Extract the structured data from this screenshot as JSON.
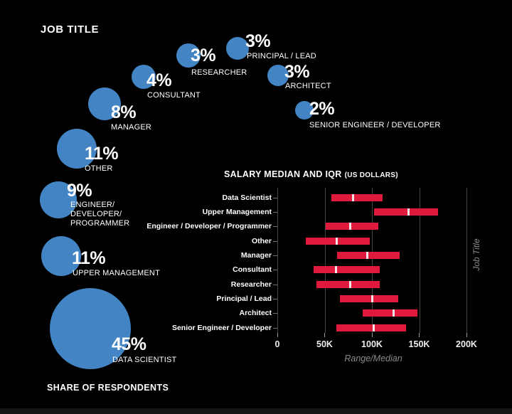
{
  "colors": {
    "background": "#000000",
    "bubble_blue": "#4284c4",
    "bar_red": "#e01a3c",
    "median_tick": "#f6e3e8",
    "grid_gray": "#434343",
    "muted_text": "#8c8c8c",
    "text": "#ffffff"
  },
  "chart_data": [
    {
      "type": "bubble",
      "title": "JOB TITLE",
      "footer": "SHARE OF RESPONDENTS",
      "value_unit": "percent",
      "points": [
        {
          "label": "PRINCIPAL / LEAD",
          "pct_text": "3%",
          "value_pct": 3,
          "label_lines": [
            "PRINCIPAL / LEAD"
          ]
        },
        {
          "label": "RESEARCHER",
          "pct_text": "3%",
          "value_pct": 3,
          "label_lines": [
            "RESEARCHER"
          ]
        },
        {
          "label": "ARCHITECT",
          "pct_text": "3%",
          "value_pct": 3,
          "label_lines": [
            "ARCHITECT"
          ]
        },
        {
          "label": "CONSULTANT",
          "pct_text": "4%",
          "value_pct": 4,
          "label_lines": [
            "CONSULTANT"
          ]
        },
        {
          "label": "SENIOR ENGINEER / DEVELOPER",
          "pct_text": "2%",
          "value_pct": 2,
          "label_lines": [
            "SENIOR ENGINEER / DEVELOPER"
          ]
        },
        {
          "label": "MANAGER",
          "pct_text": "8%",
          "value_pct": 8,
          "label_lines": [
            "MANAGER"
          ]
        },
        {
          "label": "OTHER",
          "pct_text": "11%",
          "value_pct": 11,
          "label_lines": [
            "OTHER"
          ]
        },
        {
          "label": "ENGINEER/DEVELOPER/PROGRAMMER",
          "pct_text": "9%",
          "value_pct": 9,
          "label_lines": [
            "ENGINEER/",
            "DEVELOPER/",
            "PROGRAMMER"
          ]
        },
        {
          "label": "UPPER MANAGEMENT",
          "pct_text": "11%",
          "value_pct": 11,
          "label_lines": [
            "UPPER MANAGEMENT"
          ]
        },
        {
          "label": "DATA SCIENTIST",
          "pct_text": "45%",
          "value_pct": 45,
          "label_lines": [
            "DATA SCIENTIST"
          ]
        }
      ]
    },
    {
      "type": "range_bar",
      "title": "SALARY MEDIAN AND IQR",
      "title_suffix": "(US DOLLARS)",
      "xlabel": "Range/Median",
      "ylabel": "Job Title",
      "x_ticks": [
        "0",
        "50K",
        "100K",
        "150K",
        "200K"
      ],
      "x_tick_values": [
        0,
        50000,
        100000,
        150000,
        200000
      ],
      "xlim": [
        0,
        233000
      ],
      "grid": true,
      "legend": null,
      "rows": [
        {
          "label": "Data Scientist",
          "low": 57000,
          "median": 80000,
          "high": 111000
        },
        {
          "label": "Upper Management",
          "low": 102000,
          "median": 139000,
          "high": 170000
        },
        {
          "label": "Engineer / Developer / Programmer",
          "low": 51000,
          "median": 77000,
          "high": 107000
        },
        {
          "label": "Other",
          "low": 30000,
          "median": 63000,
          "high": 98000
        },
        {
          "label": "Manager",
          "low": 63000,
          "median": 95000,
          "high": 129000
        },
        {
          "label": "Consultant",
          "low": 38000,
          "median": 62000,
          "high": 108000
        },
        {
          "label": "Researcher",
          "low": 41000,
          "median": 77000,
          "high": 108000
        },
        {
          "label": "Principal / Lead",
          "low": 66000,
          "median": 100000,
          "high": 128000
        },
        {
          "label": "Architect",
          "low": 90000,
          "median": 123000,
          "high": 148000
        },
        {
          "label": "Senior Engineer / Developer",
          "low": 62000,
          "median": 102000,
          "high": 136000
        }
      ]
    }
  ]
}
